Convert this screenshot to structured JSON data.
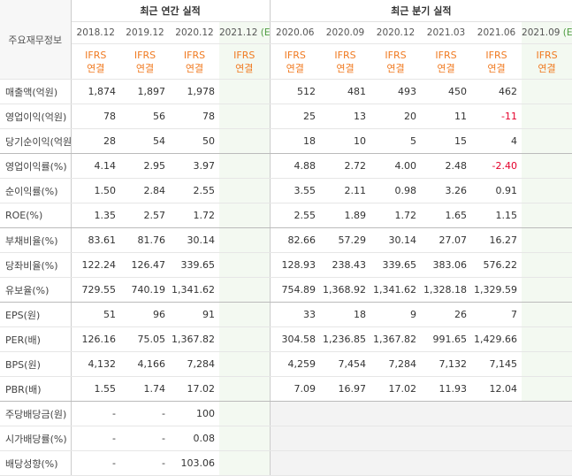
{
  "table": {
    "corner": "주요재무정보",
    "groups": [
      {
        "title": "최근 연간 실적",
        "span": 4
      },
      {
        "title": "최근 분기 실적",
        "span": 6
      }
    ],
    "columns": [
      {
        "period": "2018.12",
        "basis": "IFRS",
        "scope": "연결"
      },
      {
        "period": "2019.12",
        "basis": "IFRS",
        "scope": "연결"
      },
      {
        "period": "2020.12",
        "basis": "IFRS",
        "scope": "연결"
      },
      {
        "period": "2021.12",
        "estimate": "(E)",
        "basis": "IFRS",
        "scope": "연결"
      },
      {
        "period": "2020.06",
        "basis": "IFRS",
        "scope": "연결"
      },
      {
        "period": "2020.09",
        "basis": "IFRS",
        "scope": "연결"
      },
      {
        "period": "2020.12",
        "basis": "IFRS",
        "scope": "연결"
      },
      {
        "period": "2021.03",
        "basis": "IFRS",
        "scope": "연결"
      },
      {
        "period": "2021.06",
        "basis": "IFRS",
        "scope": "연결"
      },
      {
        "period": "2021.09",
        "estimate": "(E)",
        "basis": "IFRS",
        "scope": "연결"
      }
    ],
    "rows": [
      {
        "label": "매출액(억원)",
        "cells": [
          "1,874",
          "1,897",
          "1,978",
          null,
          "512",
          "481",
          "493",
          "450",
          "462",
          null
        ]
      },
      {
        "label": "영업이익(억원)",
        "cells": [
          "78",
          "56",
          "78",
          null,
          "25",
          "13",
          "20",
          "11",
          "-11",
          null
        ]
      },
      {
        "label": "당기순이익(억원)",
        "cells": [
          "28",
          "54",
          "50",
          null,
          "18",
          "10",
          "5",
          "15",
          "4",
          null
        ],
        "group_end": true
      },
      {
        "label": "영업이익률(%)",
        "cells": [
          "4.14",
          "2.95",
          "3.97",
          null,
          "4.88",
          "2.72",
          "4.00",
          "2.48",
          "-2.40",
          null
        ]
      },
      {
        "label": "순이익률(%)",
        "cells": [
          "1.50",
          "2.84",
          "2.55",
          null,
          "3.55",
          "2.11",
          "0.98",
          "3.26",
          "0.91",
          null
        ]
      },
      {
        "label": "ROE(%)",
        "cells": [
          "1.35",
          "2.57",
          "1.72",
          null,
          "2.55",
          "1.89",
          "1.72",
          "1.65",
          "1.15",
          null
        ],
        "group_end": true
      },
      {
        "label": "부채비율(%)",
        "cells": [
          "83.61",
          "81.76",
          "30.14",
          null,
          "82.66",
          "57.29",
          "30.14",
          "27.07",
          "16.27",
          null
        ]
      },
      {
        "label": "당좌비율(%)",
        "cells": [
          "122.24",
          "126.47",
          "339.65",
          null,
          "128.93",
          "238.43",
          "339.65",
          "383.06",
          "576.22",
          null
        ]
      },
      {
        "label": "유보율(%)",
        "cells": [
          "729.55",
          "740.19",
          "1,341.62",
          null,
          "754.89",
          "1,368.92",
          "1,341.62",
          "1,328.18",
          "1,329.59",
          null
        ],
        "group_end": true
      },
      {
        "label": "EPS(원)",
        "cells": [
          "51",
          "96",
          "91",
          null,
          "33",
          "18",
          "9",
          "26",
          "7",
          null
        ]
      },
      {
        "label": "PER(배)",
        "cells": [
          "126.16",
          "75.05",
          "1,367.82",
          null,
          "304.58",
          "1,236.85",
          "1,367.82",
          "991.65",
          "1,429.66",
          null
        ]
      },
      {
        "label": "BPS(원)",
        "cells": [
          "4,132",
          "4,166",
          "7,284",
          null,
          "4,259",
          "7,454",
          "7,284",
          "7,132",
          "7,145",
          null
        ]
      },
      {
        "label": "PBR(배)",
        "cells": [
          "1.55",
          "1.74",
          "17.02",
          null,
          "7.09",
          "16.97",
          "17.02",
          "11.93",
          "12.04",
          null
        ],
        "group_end": true
      },
      {
        "label": "주당배당금(원)",
        "cells": [
          "-",
          "-",
          "100",
          null,
          null,
          null,
          null,
          null,
          null,
          null
        ],
        "no_quarterly": true
      },
      {
        "label": "시가배당률(%)",
        "cells": [
          "-",
          "-",
          "0.08",
          null,
          null,
          null,
          null,
          null,
          null,
          null
        ],
        "no_quarterly": true
      },
      {
        "label": "배당성향(%)",
        "cells": [
          "-",
          "-",
          "103.06",
          null,
          null,
          null,
          null,
          null,
          null,
          null
        ],
        "no_quarterly": true
      }
    ]
  }
}
